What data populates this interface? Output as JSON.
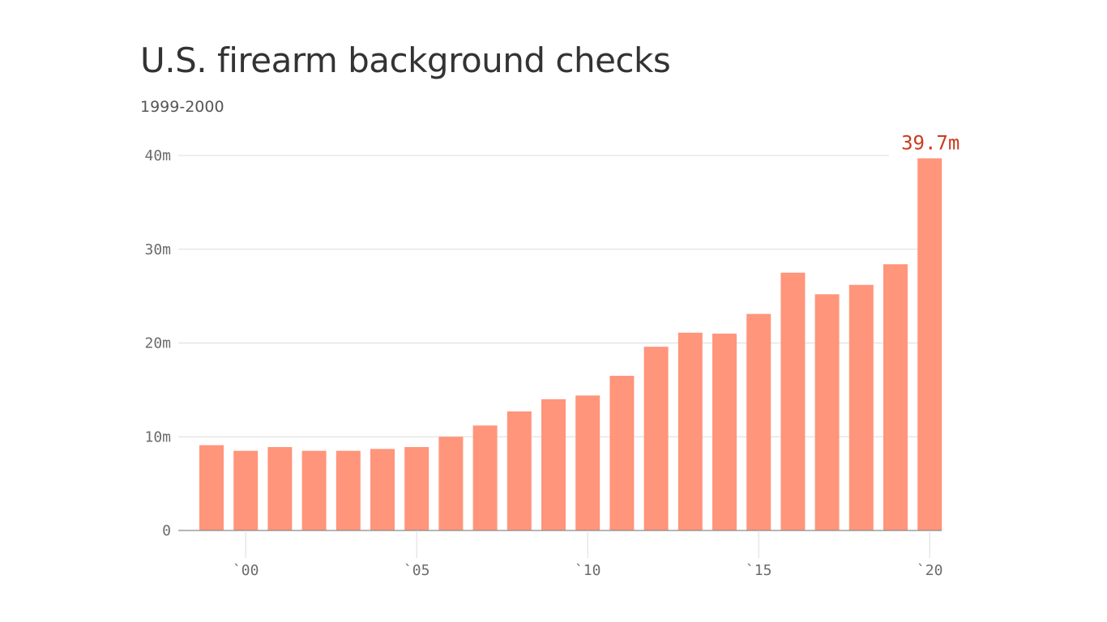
{
  "title": "U.S. firearm background checks",
  "subtitle": "1999-2000",
  "colors": {
    "bar": "#ff957b",
    "grid": "#dcdcdc",
    "axis": "#8a8a8a",
    "highlight_label": "#cc3b1e"
  },
  "chart_data": {
    "type": "bar",
    "title": "U.S. firearm background checks",
    "subtitle": "1999-2000",
    "categories": [
      "1999",
      "2000",
      "2001",
      "2002",
      "2003",
      "2004",
      "2005",
      "2006",
      "2007",
      "2008",
      "2009",
      "2010",
      "2011",
      "2012",
      "2013",
      "2014",
      "2015",
      "2016",
      "2017",
      "2018",
      "2019",
      "2020"
    ],
    "values": [
      9.1,
      8.5,
      8.9,
      8.5,
      8.5,
      8.7,
      8.9,
      10.0,
      11.2,
      12.7,
      14.0,
      14.4,
      16.5,
      19.6,
      21.1,
      21.0,
      23.1,
      27.5,
      25.2,
      26.2,
      28.4,
      39.7
    ],
    "unit": "m",
    "ylim": [
      0,
      40
    ],
    "yticks": [
      {
        "value": 0,
        "label": "0"
      },
      {
        "value": 10,
        "label": "10m"
      },
      {
        "value": 20,
        "label": "20m"
      },
      {
        "value": 30,
        "label": "30m"
      },
      {
        "value": 40,
        "label": "40m"
      }
    ],
    "xticks": [
      {
        "category": "2000",
        "label": "`00"
      },
      {
        "category": "2005",
        "label": "`05"
      },
      {
        "category": "2010",
        "label": "`10"
      },
      {
        "category": "2015",
        "label": "`15"
      },
      {
        "category": "2020",
        "label": "`20"
      }
    ],
    "annotations": [
      {
        "category": "2020",
        "text": "39.7m"
      }
    ],
    "grid": true,
    "legend": "none"
  }
}
